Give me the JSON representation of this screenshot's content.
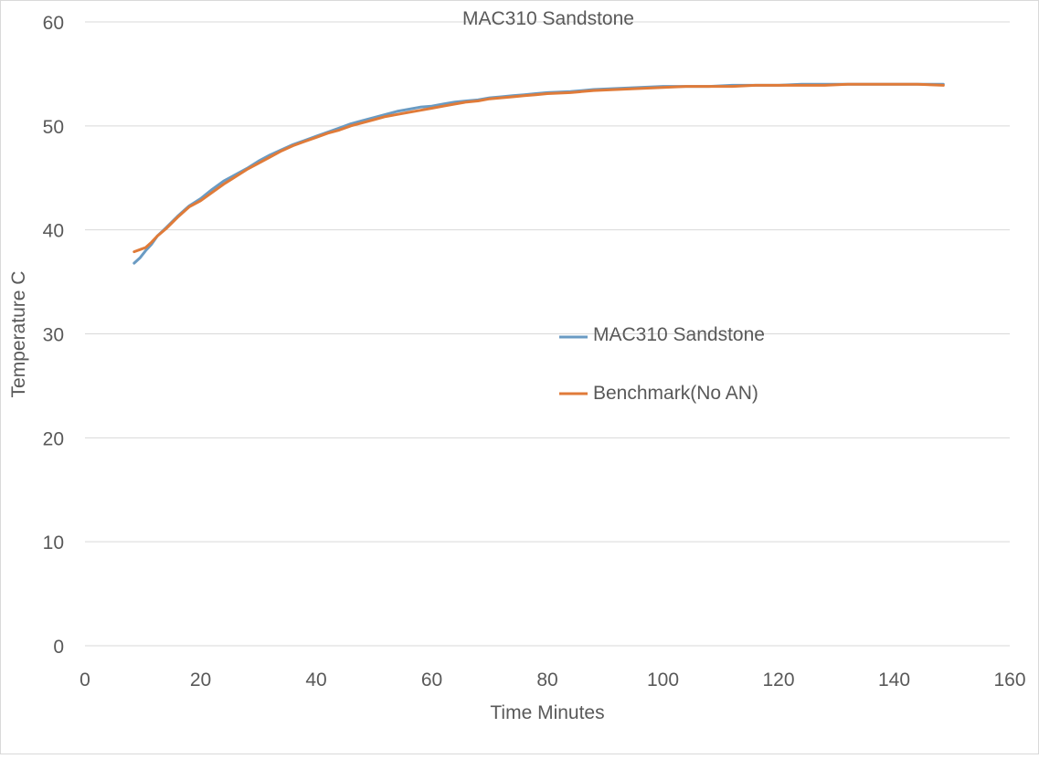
{
  "chart_data": {
    "type": "line",
    "title": "MAC310 Sandstone",
    "xlabel": "Time Minutes",
    "ylabel": "Temperature C",
    "xlim": [
      0,
      160
    ],
    "ylim": [
      0,
      60
    ],
    "x_ticks": [
      "0",
      "20",
      "40",
      "60",
      "80",
      "100",
      "120",
      "140",
      "160"
    ],
    "y_ticks": [
      "0",
      "10",
      "20",
      "30",
      "40",
      "50",
      "60"
    ],
    "x_tick_values": [
      0,
      20,
      40,
      60,
      80,
      100,
      120,
      140,
      160
    ],
    "y_tick_values": [
      0,
      10,
      20,
      30,
      40,
      50,
      60
    ],
    "grid": "horizontal",
    "legend_position": "center-right",
    "series": [
      {
        "name": "MAC310 Sandstone",
        "color": "#6a9bc3",
        "x": [
          8.5,
          9.5,
          10.5,
          11.5,
          12.5,
          14,
          16,
          18,
          20,
          22,
          24,
          26,
          28,
          30,
          32,
          34,
          36,
          38,
          40,
          42,
          44,
          46,
          48,
          50,
          52,
          54,
          56,
          58,
          60,
          62,
          64,
          66,
          68,
          70,
          72,
          74,
          76,
          78,
          80,
          84,
          88,
          92,
          96,
          100,
          104,
          108,
          112,
          116,
          120,
          124,
          128,
          132,
          136,
          140,
          144,
          148.5
        ],
        "y": [
          36.8,
          37.3,
          38.0,
          38.6,
          39.4,
          40.2,
          41.3,
          42.3,
          43.0,
          43.9,
          44.7,
          45.3,
          45.9,
          46.6,
          47.2,
          47.7,
          48.2,
          48.6,
          49.0,
          49.4,
          49.8,
          50.2,
          50.5,
          50.8,
          51.1,
          51.4,
          51.6,
          51.8,
          51.9,
          52.1,
          52.3,
          52.4,
          52.5,
          52.7,
          52.8,
          52.9,
          53.0,
          53.1,
          53.2,
          53.3,
          53.5,
          53.6,
          53.7,
          53.8,
          53.8,
          53.8,
          53.9,
          53.9,
          53.9,
          54.0,
          54.0,
          54.0,
          54.0,
          54.0,
          54.0,
          54.0
        ]
      },
      {
        "name": "Benchmark(No AN)",
        "color": "#e07b39",
        "x": [
          8.5,
          9.5,
          10.5,
          11.5,
          12.5,
          14,
          16,
          18,
          20,
          22,
          24,
          26,
          28,
          30,
          32,
          34,
          36,
          38,
          40,
          42,
          44,
          46,
          48,
          50,
          52,
          54,
          56,
          58,
          60,
          62,
          64,
          66,
          68,
          70,
          72,
          74,
          76,
          78,
          80,
          84,
          88,
          92,
          96,
          100,
          104,
          108,
          112,
          116,
          120,
          124,
          128,
          132,
          136,
          140,
          144,
          148.5
        ],
        "y": [
          37.9,
          38.1,
          38.3,
          38.8,
          39.4,
          40.1,
          41.2,
          42.2,
          42.8,
          43.6,
          44.4,
          45.1,
          45.8,
          46.4,
          47.0,
          47.6,
          48.1,
          48.5,
          48.9,
          49.3,
          49.6,
          50.0,
          50.3,
          50.6,
          50.9,
          51.1,
          51.3,
          51.5,
          51.7,
          51.9,
          52.1,
          52.3,
          52.4,
          52.6,
          52.7,
          52.8,
          52.9,
          53.0,
          53.1,
          53.2,
          53.4,
          53.5,
          53.6,
          53.7,
          53.8,
          53.8,
          53.8,
          53.9,
          53.9,
          53.9,
          53.9,
          54.0,
          54.0,
          54.0,
          54.0,
          53.9
        ]
      }
    ]
  }
}
